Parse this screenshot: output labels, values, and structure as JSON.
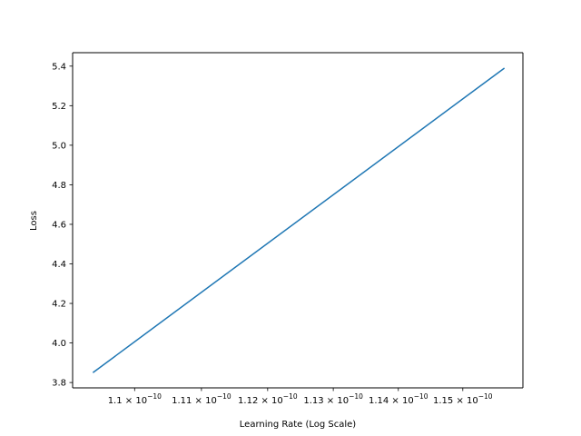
{
  "chart_data": {
    "type": "line",
    "xlabel": "Learning Rate (Log Scale)",
    "ylabel": "Loss",
    "xscale": "log",
    "grid": false,
    "series": [
      {
        "color": "#1f77b4",
        "x": [
          1.0938e-10,
          1.1565e-10
        ],
        "y": [
          3.85,
          5.39
        ]
      }
    ],
    "xlim": [
      1.0908e-10,
      1.1594e-10
    ],
    "ylim": [
      3.773,
      5.468
    ],
    "x_ticks": [
      {
        "value": 1.1e-10,
        "mantissa": "1.1",
        "base": "10",
        "exponent": "−10"
      },
      {
        "value": 1.11e-10,
        "mantissa": "1.11",
        "base": "10",
        "exponent": "−10"
      },
      {
        "value": 1.12e-10,
        "mantissa": "1.12",
        "base": "10",
        "exponent": "−10"
      },
      {
        "value": 1.13e-10,
        "mantissa": "1.13",
        "base": "10",
        "exponent": "−10"
      },
      {
        "value": 1.14e-10,
        "mantissa": "1.14",
        "base": "10",
        "exponent": "−10"
      },
      {
        "value": 1.15e-10,
        "mantissa": "1.15",
        "base": "10",
        "exponent": "−10"
      }
    ],
    "y_ticks": [
      "3.8",
      "4.0",
      "4.2",
      "4.4",
      "4.6",
      "4.8",
      "5.0",
      "5.2",
      "5.4"
    ]
  }
}
